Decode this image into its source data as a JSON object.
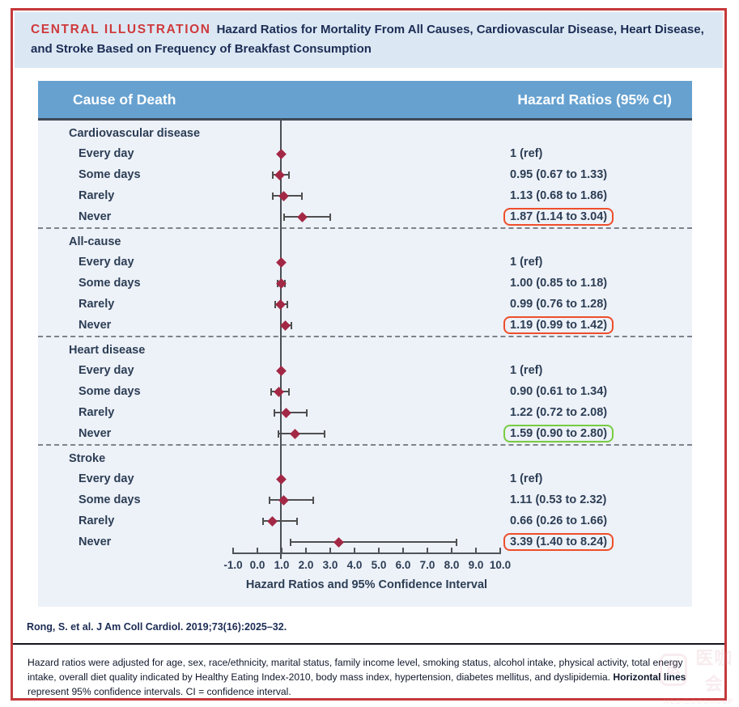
{
  "title": {
    "label": "CENTRAL ILLUSTRATION",
    "text": "Hazard Ratios for Mortality From All Causes, Cardiovascular Disease, Heart Disease, and Stroke Based on Frequency of Breakfast Consumption"
  },
  "table_header": {
    "col_left": "Cause of Death",
    "col_right": "Hazard Ratios (95% CI)"
  },
  "citation": "Rong, S. et al. J Am Coll Cardiol. 2019;73(16):2025–32.",
  "footnote": {
    "pre": "Hazard ratios were adjusted for age, sex, race/ethnicity, marital status, family income level, smoking status, alcohol intake, physical activity, total energy intake, overall diet quality indicated by Healthy Eating Index-2010, body mass index, hypertension, diabetes mellitus, and dyslipidemia. ",
    "bold": "Horizontal lines",
    "post": " represent 95% confidence intervals. CI = confidence interval."
  },
  "watermark": {
    "cn": "医咖会",
    "en": "MEDIECOGROUP"
  },
  "colors": {
    "frame_red": "#c5393b",
    "accent_red": "#cf3a3c",
    "header_blue": "#66a1d0",
    "marker_red": "#a32845",
    "highlight_red": "#ee4e2b",
    "highlight_green": "#76cc41",
    "title_navy": "#1c2c54",
    "plot_background": "#edf1f8"
  },
  "chart_data": {
    "type": "scatter",
    "subtype": "forest-plot",
    "xlabel": "Hazard Ratios and 95% Confidence Interval",
    "xlim": [
      -1.0,
      10.0
    ],
    "x_ticks": [
      "-1.0",
      "0.0",
      "1.0",
      "2.0",
      "3.0",
      "4.0",
      "5.0",
      "6.0",
      "7.0",
      "8.0",
      "9.0",
      "10.0"
    ],
    "reference_value": 1.0,
    "grid": false,
    "groups": [
      {
        "name": "Cardiovascular disease",
        "rows": [
          {
            "label": "Every day",
            "hr": 1.0,
            "lo": null,
            "hi": null,
            "text": "1 (ref)",
            "highlight": null
          },
          {
            "label": "Some days",
            "hr": 0.95,
            "lo": 0.67,
            "hi": 1.33,
            "text": "0.95 (0.67 to 1.33)",
            "highlight": null
          },
          {
            "label": "Rarely",
            "hr": 1.13,
            "lo": 0.68,
            "hi": 1.86,
            "text": "1.13 (0.68 to 1.86)",
            "highlight": null
          },
          {
            "label": "Never",
            "hr": 1.87,
            "lo": 1.14,
            "hi": 3.04,
            "text": "1.87 (1.14 to 3.04)",
            "highlight": "red"
          }
        ]
      },
      {
        "name": "All-cause",
        "rows": [
          {
            "label": "Every day",
            "hr": 1.0,
            "lo": null,
            "hi": null,
            "text": "1 (ref)",
            "highlight": null
          },
          {
            "label": "Some days",
            "hr": 1.0,
            "lo": 0.85,
            "hi": 1.18,
            "text": "1.00 (0.85 to 1.18)",
            "highlight": null
          },
          {
            "label": "Rarely",
            "hr": 0.99,
            "lo": 0.76,
            "hi": 1.28,
            "text": "0.99 (0.76 to 1.28)",
            "highlight": null
          },
          {
            "label": "Never",
            "hr": 1.19,
            "lo": 0.99,
            "hi": 1.42,
            "text": "1.19 (0.99 to 1.42)",
            "highlight": "red"
          }
        ]
      },
      {
        "name": "Heart disease",
        "rows": [
          {
            "label": "Every day",
            "hr": 1.0,
            "lo": null,
            "hi": null,
            "text": "1 (ref)",
            "highlight": null
          },
          {
            "label": "Some days",
            "hr": 0.9,
            "lo": 0.61,
            "hi": 1.34,
            "text": "0.90 (0.61 to 1.34)",
            "highlight": null
          },
          {
            "label": "Rarely",
            "hr": 1.22,
            "lo": 0.72,
            "hi": 2.08,
            "text": "1.22 (0.72 to 2.08)",
            "highlight": null
          },
          {
            "label": "Never",
            "hr": 1.59,
            "lo": 0.9,
            "hi": 2.8,
            "text": "1.59 (0.90 to 2.80)",
            "highlight": "green"
          }
        ]
      },
      {
        "name": "Stroke",
        "rows": [
          {
            "label": "Every day",
            "hr": 1.0,
            "lo": null,
            "hi": null,
            "text": "1 (ref)",
            "highlight": null
          },
          {
            "label": "Some days",
            "hr": 1.11,
            "lo": 0.53,
            "hi": 2.32,
            "text": "1.11 (0.53 to 2.32)",
            "highlight": null
          },
          {
            "label": "Rarely",
            "hr": 0.66,
            "lo": 0.26,
            "hi": 1.66,
            "text": "0.66 (0.26 to 1.66)",
            "highlight": null
          },
          {
            "label": "Never",
            "hr": 3.39,
            "lo": 1.4,
            "hi": 8.24,
            "text": "3.39 (1.40 to 8.24)",
            "highlight": "red"
          }
        ]
      }
    ]
  }
}
